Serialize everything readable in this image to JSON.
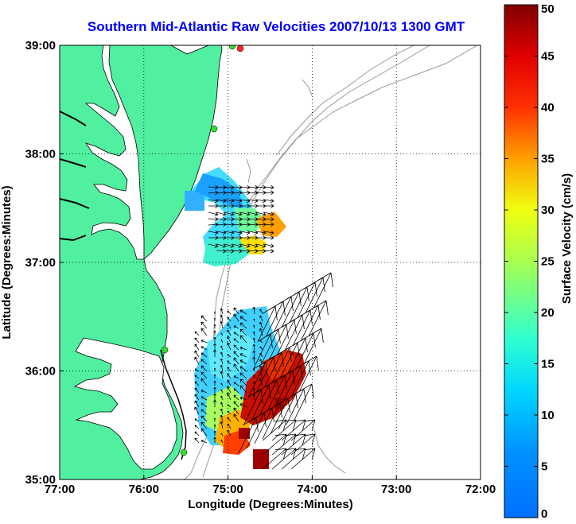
{
  "title": "Southern Mid-Atlantic Raw Velocities 2007/10/13 1300 GMT",
  "x_axis": {
    "label": "Longitude (Degrees:Minutes)",
    "ticks": [
      {
        "label": "77:00",
        "value": -77
      },
      {
        "label": "76:00",
        "value": -76
      },
      {
        "label": "75:00",
        "value": -75
      },
      {
        "label": "74:00",
        "value": -74
      },
      {
        "label": "73:00",
        "value": -73
      },
      {
        "label": "72:00",
        "value": -72
      }
    ],
    "range": [
      -77,
      -72
    ]
  },
  "y_axis": {
    "label": "Latitude (Degrees:Minutes)",
    "ticks": [
      {
        "label": "39:00",
        "value": 39
      },
      {
        "label": "38:00",
        "value": 38
      },
      {
        "label": "37:00",
        "value": 37
      },
      {
        "label": "36:00",
        "value": 36
      },
      {
        "label": "35:00",
        "value": 35
      }
    ],
    "range": [
      35,
      39
    ]
  },
  "colorbar": {
    "label": "Surface Velocity (cm/s)",
    "min": 0,
    "max": 50,
    "ticks": [
      "0",
      "5",
      "10",
      "15",
      "20",
      "25",
      "30",
      "35",
      "40",
      "45",
      "50"
    ],
    "colormap": "jet"
  },
  "colors": {
    "land": "#50f0a0",
    "title": "#0000ff",
    "station_green": "#33dd33",
    "station_red": "#ff2222",
    "bathymetry": "#999999"
  },
  "grid": true
}
